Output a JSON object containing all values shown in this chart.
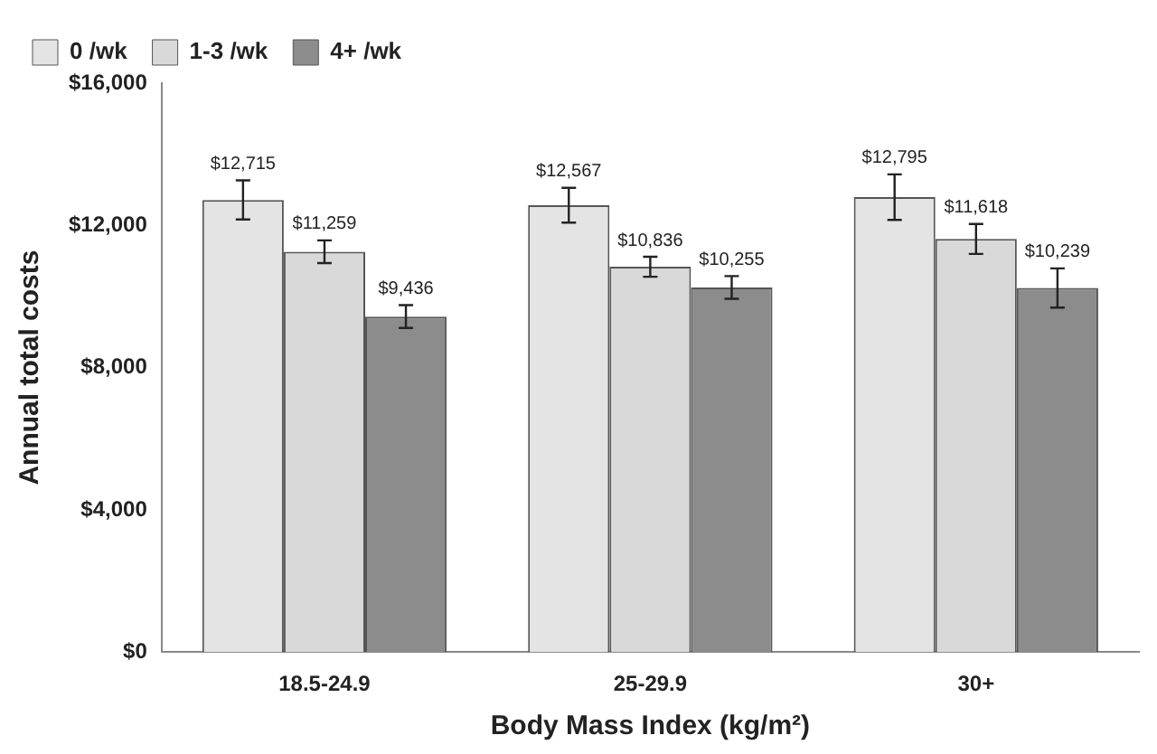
{
  "chart_data": {
    "type": "bar",
    "xlabel": "Body Mass Index (kg/m²)",
    "ylabel": "Annual total costs",
    "categories": [
      "18.5-24.9",
      "25-29.9",
      "30+"
    ],
    "series": [
      {
        "name": "0 /wk",
        "color": "#e4e4e4",
        "values": [
          12715,
          12567,
          12795
        ],
        "errors": [
          550,
          490,
          640
        ],
        "value_labels": [
          "$12,715",
          "$12,567",
          "$12,795"
        ]
      },
      {
        "name": "1-3 /wk",
        "color": "#d9d9d9",
        "values": [
          11259,
          10836,
          11618
        ],
        "errors": [
          320,
          280,
          420
        ],
        "value_labels": [
          "$11,259",
          "$10,836",
          "$11,618"
        ]
      },
      {
        "name": "4+ /wk",
        "color": "#8c8c8c",
        "values": [
          9436,
          10255,
          10239
        ],
        "errors": [
          320,
          320,
          550
        ],
        "value_labels": [
          "$9,436",
          "$10,255",
          "$10,239"
        ]
      }
    ],
    "ylim": [
      0,
      16000
    ],
    "yticks": [
      {
        "value": 0,
        "label": "$0"
      },
      {
        "value": 4000,
        "label": "$4,000"
      },
      {
        "value": 8000,
        "label": "$8,000"
      },
      {
        "value": 12000,
        "label": "$12,000"
      },
      {
        "value": 16000,
        "label": "$16,000"
      }
    ],
    "grid": false,
    "legend": "top left"
  }
}
